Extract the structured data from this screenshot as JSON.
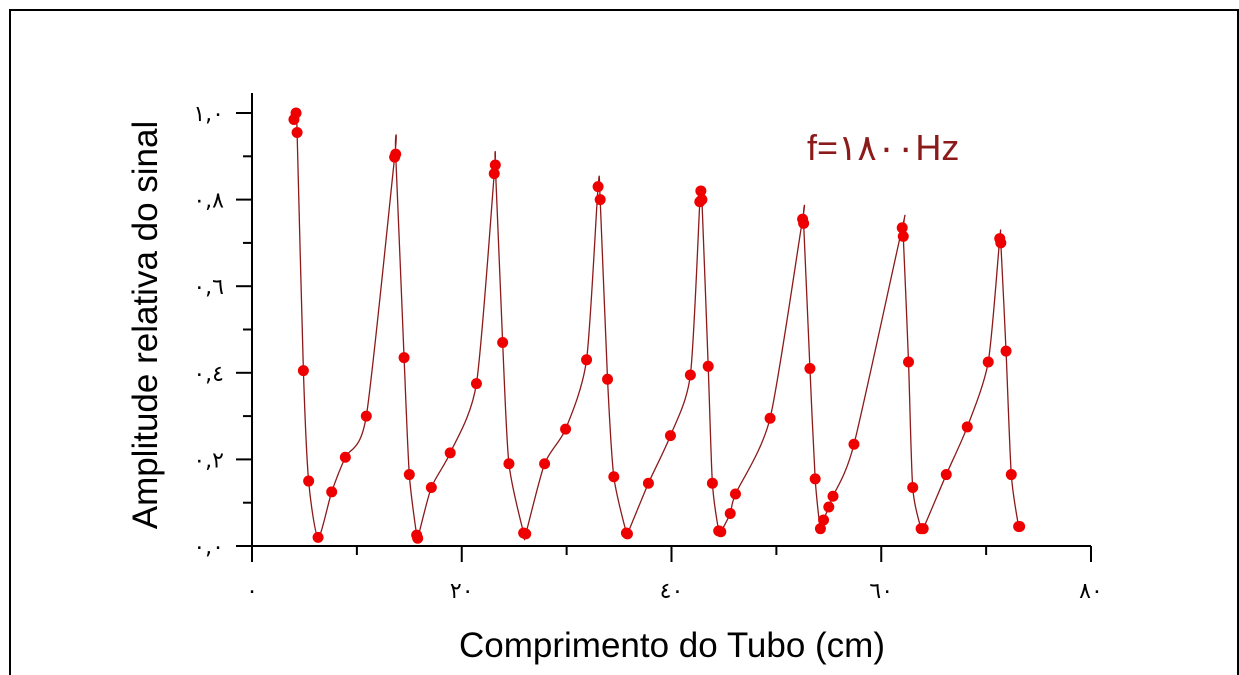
{
  "chart_data": {
    "type": "scatter",
    "xlabel": "Comprimento do Tubo (cm)",
    "ylabel": "Amplitude relativa do sinal",
    "annotation": "f=١٨٠٠Hz",
    "xlim": [
      0,
      80
    ],
    "ylim": [
      0,
      1.0
    ],
    "x_ticks": [
      {
        "value": 0,
        "label": "٠"
      },
      {
        "value": 20,
        "label": "٢٠"
      },
      {
        "value": 40,
        "label": "٤٠"
      },
      {
        "value": 60,
        "label": "٦٠"
      },
      {
        "value": 80,
        "label": "٨٠"
      }
    ],
    "y_ticks": [
      {
        "value": 0,
        "label": "٠,٠"
      },
      {
        "value": 0.2,
        "label": "٠,٢"
      },
      {
        "value": 0.4,
        "label": "٠,٤"
      },
      {
        "value": 0.6,
        "label": "٠,٦"
      },
      {
        "value": 0.8,
        "label": "٠,٨"
      },
      {
        "value": 1.0,
        "label": "١,٠"
      }
    ],
    "grid": false,
    "colors": {
      "points": "#ee0000",
      "line": "#8b1a1a",
      "annotation": "#8b1a1a"
    },
    "series": [
      {
        "points": [
          [
            4.2,
            1.0
          ],
          [
            4.0,
            0.985
          ],
          [
            4.3,
            0.955
          ],
          [
            4.9,
            0.405
          ],
          [
            5.4,
            0.15
          ],
          [
            6.3,
            0.02
          ],
          [
            7.6,
            0.125
          ],
          [
            8.9,
            0.205
          ],
          [
            10.9,
            0.3
          ],
          [
            13.7,
            0.905
          ],
          [
            13.6,
            0.898
          ],
          [
            14.5,
            0.435
          ],
          [
            15.0,
            0.165
          ],
          [
            15.7,
            0.025
          ],
          [
            15.8,
            0.018
          ],
          [
            17.1,
            0.135
          ],
          [
            18.9,
            0.215
          ],
          [
            21.4,
            0.375
          ],
          [
            23.2,
            0.88
          ],
          [
            23.1,
            0.86
          ],
          [
            23.9,
            0.47
          ],
          [
            24.5,
            0.19
          ],
          [
            25.9,
            0.03
          ],
          [
            26.1,
            0.028
          ],
          [
            27.9,
            0.19
          ],
          [
            29.9,
            0.27
          ],
          [
            31.9,
            0.43
          ],
          [
            33.0,
            0.83
          ],
          [
            33.2,
            0.8
          ],
          [
            33.9,
            0.385
          ],
          [
            34.5,
            0.16
          ],
          [
            35.7,
            0.03
          ],
          [
            35.8,
            0.028
          ],
          [
            37.8,
            0.145
          ],
          [
            39.9,
            0.255
          ],
          [
            41.8,
            0.395
          ],
          [
            42.8,
            0.82
          ],
          [
            42.9,
            0.8
          ],
          [
            42.7,
            0.795
          ],
          [
            43.5,
            0.415
          ],
          [
            43.9,
            0.145
          ],
          [
            44.5,
            0.035
          ],
          [
            44.7,
            0.033
          ],
          [
            45.6,
            0.075
          ],
          [
            46.1,
            0.12
          ],
          [
            49.4,
            0.295
          ],
          [
            52.5,
            0.755
          ],
          [
            52.6,
            0.745
          ],
          [
            53.2,
            0.41
          ],
          [
            53.7,
            0.155
          ],
          [
            54.2,
            0.04
          ],
          [
            54.5,
            0.06
          ],
          [
            55.0,
            0.09
          ],
          [
            55.4,
            0.115
          ],
          [
            57.4,
            0.235
          ],
          [
            62.0,
            0.735
          ],
          [
            62.1,
            0.715
          ],
          [
            62.6,
            0.425
          ],
          [
            63.0,
            0.135
          ],
          [
            63.8,
            0.04
          ],
          [
            64.0,
            0.04
          ],
          [
            66.2,
            0.165
          ],
          [
            68.2,
            0.275
          ],
          [
            70.2,
            0.425
          ],
          [
            71.3,
            0.71
          ],
          [
            71.4,
            0.7
          ],
          [
            71.9,
            0.45
          ],
          [
            72.4,
            0.165
          ],
          [
            73.1,
            0.045
          ],
          [
            73.2,
            0.045
          ]
        ]
      }
    ]
  }
}
